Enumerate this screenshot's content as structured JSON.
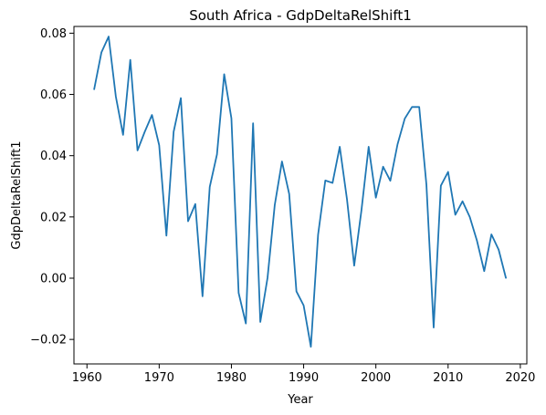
{
  "chart_data": {
    "type": "line",
    "title": "South Africa - GdpDeltaRelShift1",
    "xlabel": "Year",
    "ylabel": "GdpDeltaRelShift1",
    "xlim": [
      1958.2,
      2020.9
    ],
    "ylim": [
      -0.028,
      0.0822
    ],
    "xticks": [
      1960,
      1970,
      1980,
      1990,
      2000,
      2010,
      2020
    ],
    "xtick_labels": [
      "1960",
      "1970",
      "1980",
      "1990",
      "2000",
      "2010",
      "2020"
    ],
    "yticks": [
      -0.02,
      0.0,
      0.02,
      0.04,
      0.06,
      0.08
    ],
    "ytick_labels": [
      "−0.02",
      "0.00",
      "0.02",
      "0.04",
      "0.06",
      "0.08"
    ],
    "grid": false,
    "color": "#1f77b4",
    "series": [
      {
        "x": [
          1961,
          1962,
          1963,
          1964,
          1965,
          1966,
          1967,
          1968,
          1969,
          1970,
          1971,
          1972,
          1973,
          1974,
          1975,
          1976,
          1977,
          1978,
          1979,
          1980,
          1981,
          1982,
          1983,
          1984,
          1985,
          1986,
          1987,
          1988,
          1989,
          1990,
          1991,
          1992,
          1993,
          1994,
          1995,
          1996,
          1997,
          1998,
          1999,
          2000,
          2001,
          2002,
          2003,
          2004,
          2005,
          2006,
          2007,
          2008,
          2009,
          2010,
          2011,
          2012,
          2013,
          2014,
          2015,
          2016,
          2017,
          2018
        ],
        "values": [
          0.0617,
          0.0737,
          0.0789,
          0.0593,
          0.0468,
          0.0713,
          0.0417,
          0.0478,
          0.0533,
          0.0434,
          0.0139,
          0.0478,
          0.0588,
          0.0186,
          0.0242,
          -0.0059,
          0.0298,
          0.0404,
          0.0666,
          0.0522,
          -0.0048,
          -0.0148,
          0.0506,
          -0.0143,
          0.0001,
          0.0239,
          0.0381,
          0.0275,
          -0.0043,
          -0.0089,
          -0.0224,
          0.0142,
          0.0319,
          0.0311,
          0.0429,
          0.0258,
          0.0041,
          0.0221,
          0.0429,
          0.0263,
          0.0364,
          0.0318,
          0.0437,
          0.0521,
          0.0559,
          0.0559,
          0.0305,
          -0.0161,
          0.0302,
          0.0347,
          0.0207,
          0.0251,
          0.02,
          0.0122,
          0.0023,
          0.0143,
          0.0093,
          0.0001
        ]
      }
    ]
  }
}
